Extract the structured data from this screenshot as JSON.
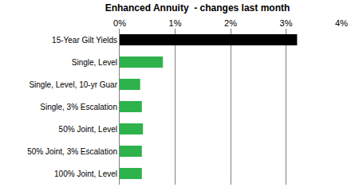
{
  "chart_data": {
    "type": "bar",
    "orientation": "horizontal",
    "title": "Enhanced Annuity  - changes last month",
    "categories": [
      "15-Year Gilt Yields",
      "Single, Level",
      "Single, Level, 10-yr Guar",
      "Single, 3% Escalation",
      "50% Joint, Level",
      "50% Joint, 3% Escalation",
      "100% Joint, Level"
    ],
    "values": [
      3.2,
      0.78,
      0.37,
      0.4,
      0.42,
      0.4,
      0.4
    ],
    "colors": [
      "#000000",
      "#2eb24c",
      "#2eb24c",
      "#2eb24c",
      "#2eb24c",
      "#2eb24c",
      "#2eb24c"
    ],
    "xlim": [
      0,
      4
    ],
    "xticks": [
      {
        "value": 0,
        "label": "0%"
      },
      {
        "value": 1,
        "label": "1%"
      },
      {
        "value": 2,
        "label": "2%"
      },
      {
        "value": 3,
        "label": "3%"
      },
      {
        "value": 4,
        "label": "4%"
      }
    ],
    "grid": true
  }
}
